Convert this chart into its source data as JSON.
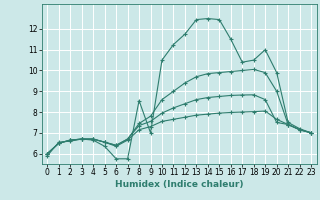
{
  "title": "",
  "xlabel": "Humidex (Indice chaleur)",
  "bg_color": "#cce8e8",
  "grid_color": "#aed4d4",
  "line_color": "#2e7d6e",
  "xlim": [
    -0.5,
    23.5
  ],
  "ylim": [
    5.5,
    13.2
  ],
  "xticks": [
    0,
    1,
    2,
    3,
    4,
    5,
    6,
    7,
    8,
    9,
    10,
    11,
    12,
    13,
    14,
    15,
    16,
    17,
    18,
    19,
    20,
    21,
    22,
    23
  ],
  "yticks": [
    6,
    7,
    8,
    9,
    10,
    11,
    12
  ],
  "curves": [
    {
      "x": [
        0,
        1,
        2,
        3,
        4,
        5,
        6,
        7,
        8,
        9,
        10,
        11,
        12,
        13,
        14,
        15,
        16,
        17,
        18,
        19,
        20,
        21,
        22,
        23
      ],
      "y": [
        5.9,
        6.55,
        6.6,
        6.7,
        6.65,
        6.35,
        5.75,
        5.75,
        8.55,
        7.0,
        10.5,
        11.25,
        11.75,
        12.45,
        12.5,
        12.45,
        11.5,
        10.4,
        10.5,
        11.0,
        9.9,
        7.5,
        7.2,
        7.0
      ]
    },
    {
      "x": [
        0,
        1,
        2,
        3,
        4,
        5,
        6,
        7,
        8,
        9,
        10,
        11,
        12,
        13,
        14,
        15,
        16,
        17,
        18,
        19,
        20,
        21,
        22,
        23
      ],
      "y": [
        6.0,
        6.5,
        6.65,
        6.7,
        6.7,
        6.55,
        6.35,
        6.65,
        7.15,
        7.3,
        7.55,
        7.65,
        7.75,
        7.85,
        7.9,
        7.95,
        7.98,
        8.0,
        8.02,
        8.05,
        7.65,
        7.4,
        7.15,
        7.0
      ]
    },
    {
      "x": [
        0,
        1,
        2,
        3,
        4,
        5,
        6,
        7,
        8,
        9,
        10,
        11,
        12,
        13,
        14,
        15,
        16,
        17,
        18,
        19,
        20,
        21,
        22,
        23
      ],
      "y": [
        6.0,
        6.5,
        6.65,
        6.7,
        6.7,
        6.55,
        6.4,
        6.7,
        7.35,
        7.55,
        7.95,
        8.2,
        8.4,
        8.6,
        8.7,
        8.75,
        8.8,
        8.82,
        8.83,
        8.6,
        7.5,
        7.4,
        7.15,
        7.0
      ]
    },
    {
      "x": [
        0,
        1,
        2,
        3,
        4,
        5,
        6,
        7,
        8,
        9,
        10,
        11,
        12,
        13,
        14,
        15,
        16,
        17,
        18,
        19,
        20,
        21,
        22,
        23
      ],
      "y": [
        6.0,
        6.5,
        6.65,
        6.7,
        6.7,
        6.55,
        6.4,
        6.7,
        7.45,
        7.8,
        8.6,
        9.0,
        9.4,
        9.7,
        9.85,
        9.9,
        9.95,
        10.0,
        10.05,
        9.9,
        9.0,
        7.4,
        7.15,
        7.0
      ]
    }
  ]
}
